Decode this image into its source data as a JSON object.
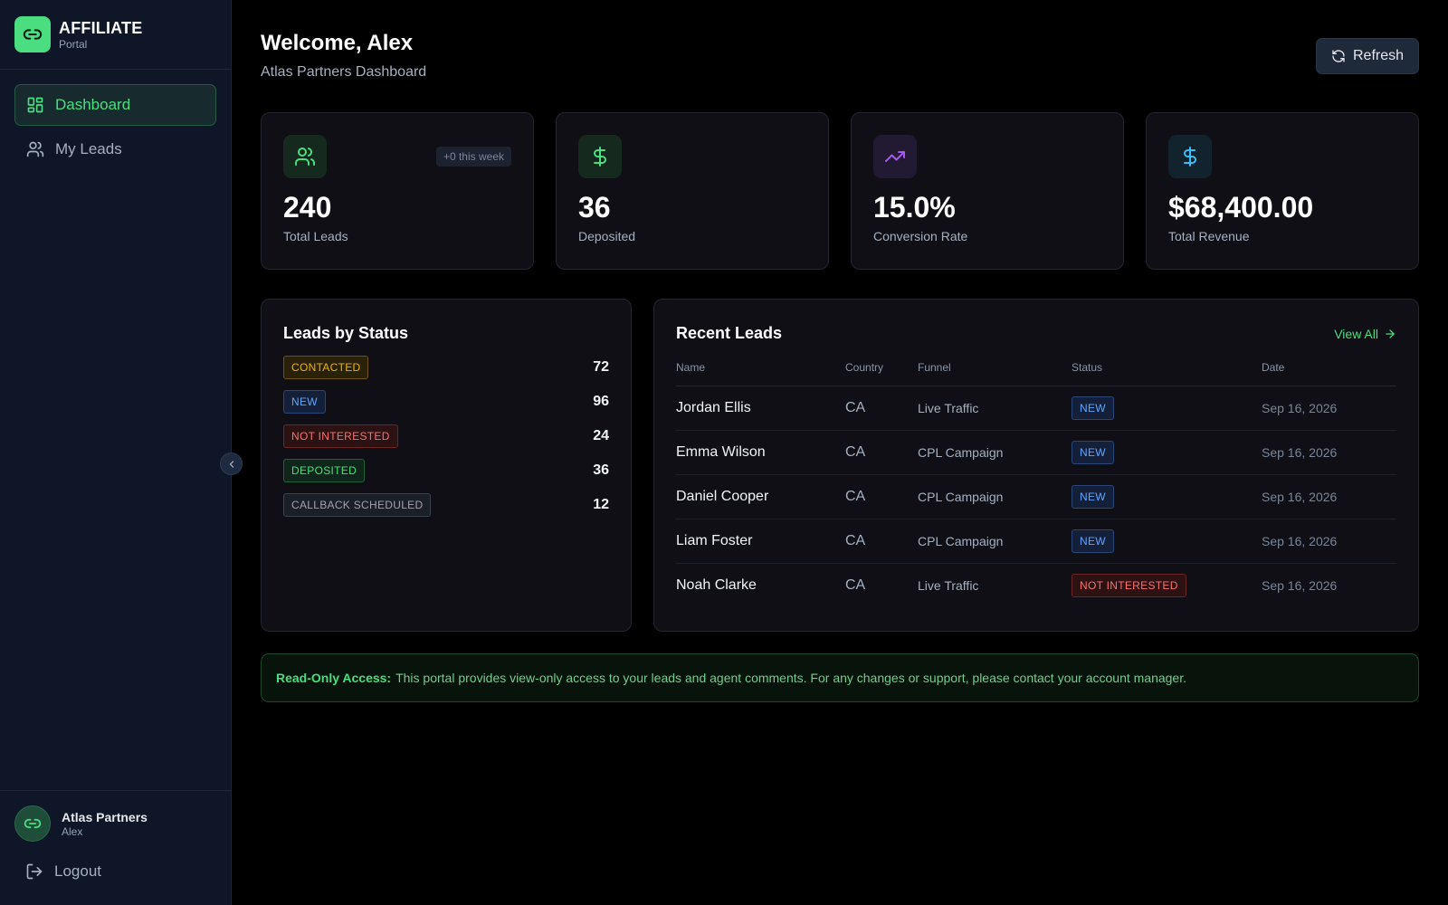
{
  "brand": {
    "title": "AFFILIATE",
    "subtitle": "Portal"
  },
  "sidebar": {
    "items": [
      {
        "label": "Dashboard",
        "icon": "dashboard-icon",
        "active": true
      },
      {
        "label": "My Leads",
        "icon": "users-icon",
        "active": false
      }
    ],
    "account": {
      "name": "Atlas Partners",
      "user": "Alex"
    },
    "logout_label": "Logout"
  },
  "header": {
    "title": "Welcome, Alex",
    "subtitle": "Atlas Partners Dashboard",
    "refresh_label": "Refresh"
  },
  "stats": [
    {
      "value": "240",
      "label": "Total Leads",
      "badge": "+0 this week",
      "icon": "users-icon",
      "accent": "#4ade80"
    },
    {
      "value": "36",
      "label": "Deposited",
      "icon": "dollar-icon",
      "accent": "#4ade80"
    },
    {
      "value": "15.0%",
      "label": "Conversion Rate",
      "icon": "trending-up-icon",
      "accent": "#a855f7"
    },
    {
      "value": "$68,400.00",
      "label": "Total Revenue",
      "icon": "dollar-icon",
      "accent": "#38bdf8"
    }
  ],
  "status_panel": {
    "title": "Leads by Status",
    "rows": [
      {
        "label": "CONTACTED",
        "count": "72",
        "color": "#eab308"
      },
      {
        "label": "NEW",
        "count": "96",
        "color": "#60a5fa"
      },
      {
        "label": "NOT INTERESTED",
        "count": "24",
        "color": "#f87171"
      },
      {
        "label": "DEPOSITED",
        "count": "36",
        "color": "#4ade80"
      },
      {
        "label": "CALLBACK SCHEDULED",
        "count": "12",
        "color": "#9ca3af"
      }
    ]
  },
  "recent_panel": {
    "title": "Recent Leads",
    "view_all_label": "View All",
    "columns": [
      "Name",
      "Country",
      "Funnel",
      "Status",
      "Date"
    ],
    "rows": [
      {
        "name": "Jordan Ellis",
        "country": "CA",
        "funnel": "Live Traffic",
        "status": "NEW",
        "date": "Sep 16, 2026"
      },
      {
        "name": "Emma Wilson",
        "country": "CA",
        "funnel": "CPL Campaign",
        "status": "NEW",
        "date": "Sep 16, 2026"
      },
      {
        "name": "Daniel Cooper",
        "country": "CA",
        "funnel": "CPL Campaign",
        "status": "NEW",
        "date": "Sep 16, 2026"
      },
      {
        "name": "Liam Foster",
        "country": "CA",
        "funnel": "CPL Campaign",
        "status": "NEW",
        "date": "Sep 16, 2026"
      },
      {
        "name": "Noah Clarke",
        "country": "CA",
        "funnel": "Live Traffic",
        "status": "NOT INTERESTED",
        "date": "Sep 16, 2026"
      }
    ]
  },
  "notice": {
    "heading": "Read-Only Access:",
    "text": "This portal provides view-only access to your leads and agent comments. For any changes or support, please contact your account manager."
  },
  "colors": {
    "accent": "#4ade80",
    "sidebar_bg": "#0e1627",
    "card_bg": "#0f0f15"
  }
}
